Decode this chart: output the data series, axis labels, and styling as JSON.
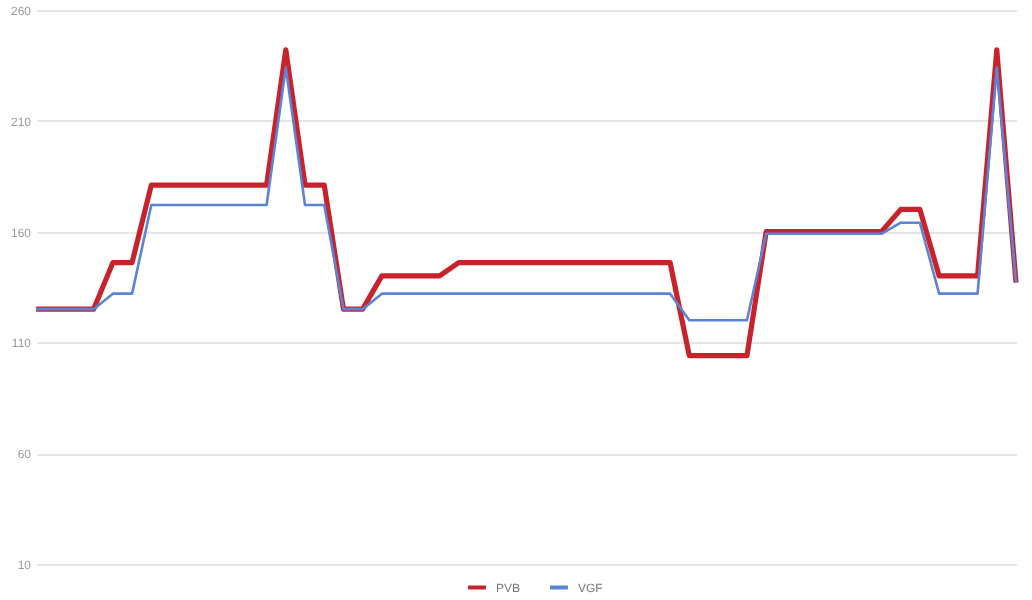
{
  "chart_data": {
    "type": "line",
    "categories": [
      null,
      null,
      null,
      null,
      null,
      null,
      null,
      null,
      null,
      null,
      null,
      null,
      null,
      null,
      null,
      null,
      null,
      null,
      null,
      null,
      null,
      null,
      null,
      null,
      null,
      null,
      null,
      null,
      null,
      null,
      null,
      null,
      null,
      null,
      null,
      null,
      null,
      null,
      null,
      null,
      null,
      null,
      null,
      null,
      null,
      null,
      null,
      null,
      null,
      null,
      null,
      null
    ],
    "series": [
      {
        "name": "PVB",
        "color": "#c8232c",
        "values": [
          125,
          125,
          125,
          125,
          146,
          146,
          181,
          181,
          181,
          181,
          181,
          181,
          181,
          242,
          181,
          181,
          125,
          125,
          140,
          140,
          140,
          140,
          146,
          146,
          146,
          146,
          146,
          146,
          146,
          146,
          146,
          146,
          146,
          146,
          104,
          104,
          104,
          104,
          160,
          160,
          160,
          160,
          160,
          160,
          160,
          170,
          170,
          140,
          140,
          140,
          242,
          137
        ]
      },
      {
        "name": "VGF",
        "color": "#5b84d6",
        "values": [
          125,
          125,
          125,
          125,
          132,
          132,
          172,
          172,
          172,
          172,
          172,
          172,
          172,
          234,
          172,
          172,
          125,
          125,
          132,
          132,
          132,
          132,
          132,
          132,
          132,
          132,
          132,
          132,
          132,
          132,
          132,
          132,
          132,
          132,
          120,
          120,
          120,
          120,
          159,
          159,
          159,
          159,
          159,
          159,
          159,
          164,
          164,
          132,
          132,
          132,
          234,
          137
        ]
      }
    ],
    "ylim": [
      10,
      260
    ],
    "yticks": [
      10,
      60,
      110,
      160,
      210,
      260
    ],
    "grid": "y",
    "legend": "bottom",
    "tick_labels": "y"
  }
}
